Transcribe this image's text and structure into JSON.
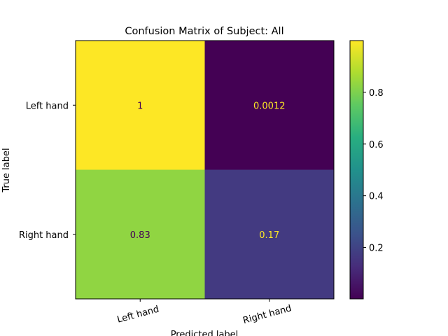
{
  "chart_data": {
    "type": "heatmap",
    "title": "Confusion Matrix of Subject: All",
    "xlabel": "Predicted label",
    "ylabel": "True label",
    "x_categories": [
      "Left hand",
      "Right hand"
    ],
    "y_categories": [
      "Left hand",
      "Right hand"
    ],
    "values": [
      [
        1.0,
        0.0012
      ],
      [
        0.83,
        0.17
      ]
    ],
    "cell_labels": [
      [
        "1",
        "0.0012"
      ],
      [
        "0.83",
        "0.17"
      ]
    ],
    "colormap": "viridis",
    "colorbar": {
      "range": [
        0.0012,
        1.0
      ],
      "ticks": [
        0.2,
        0.4,
        0.6,
        0.8
      ],
      "tick_labels": [
        "0.2",
        "0.4",
        "0.6",
        "0.8"
      ]
    },
    "grid": false
  }
}
